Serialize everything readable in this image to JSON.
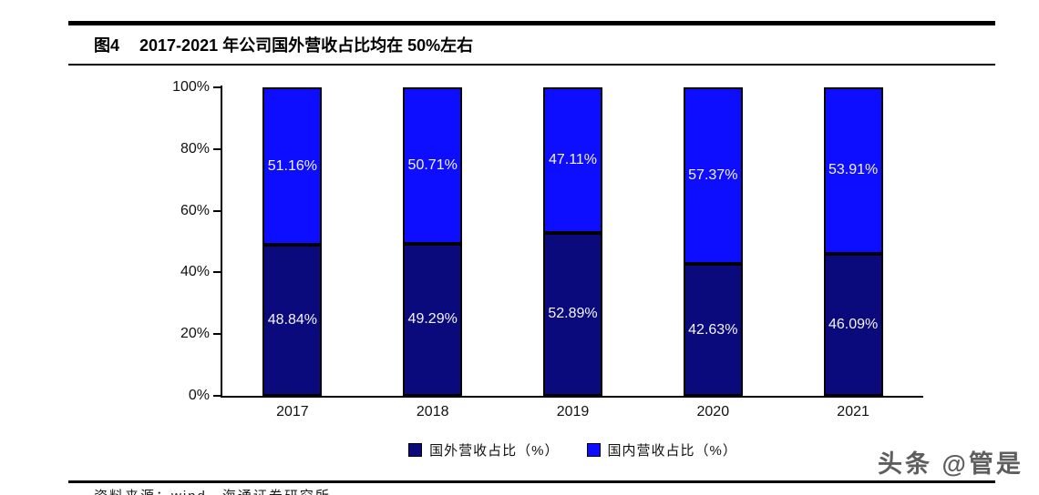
{
  "header": {
    "figure_label": "图4",
    "title": "2017-2021 年公司国外营收占比均在 50%左右"
  },
  "chart_data": {
    "type": "bar",
    "stacked": true,
    "categories": [
      "2017",
      "2018",
      "2019",
      "2020",
      "2021"
    ],
    "series": [
      {
        "name": "国外营收占比（%）",
        "color": "#0a0a7d",
        "values": [
          48.84,
          49.29,
          52.89,
          42.63,
          46.09
        ]
      },
      {
        "name": "国内营收占比（%）",
        "color": "#0d0dff",
        "values": [
          51.16,
          50.71,
          47.11,
          57.37,
          53.91
        ]
      }
    ],
    "ylim": [
      0,
      100
    ],
    "yticks": [
      {
        "value": 0,
        "label": "0%"
      },
      {
        "value": 20,
        "label": "20%"
      },
      {
        "value": 40,
        "label": "40%"
      },
      {
        "value": 60,
        "label": "60%"
      },
      {
        "value": 80,
        "label": "80%"
      },
      {
        "value": 100,
        "label": "100%"
      }
    ],
    "grid": false,
    "legend_position": "bottom",
    "value_label_suffix": "%"
  },
  "footer": {
    "source": "资料来源：wind，海通证券研究所"
  },
  "watermark": "头条 @管是"
}
